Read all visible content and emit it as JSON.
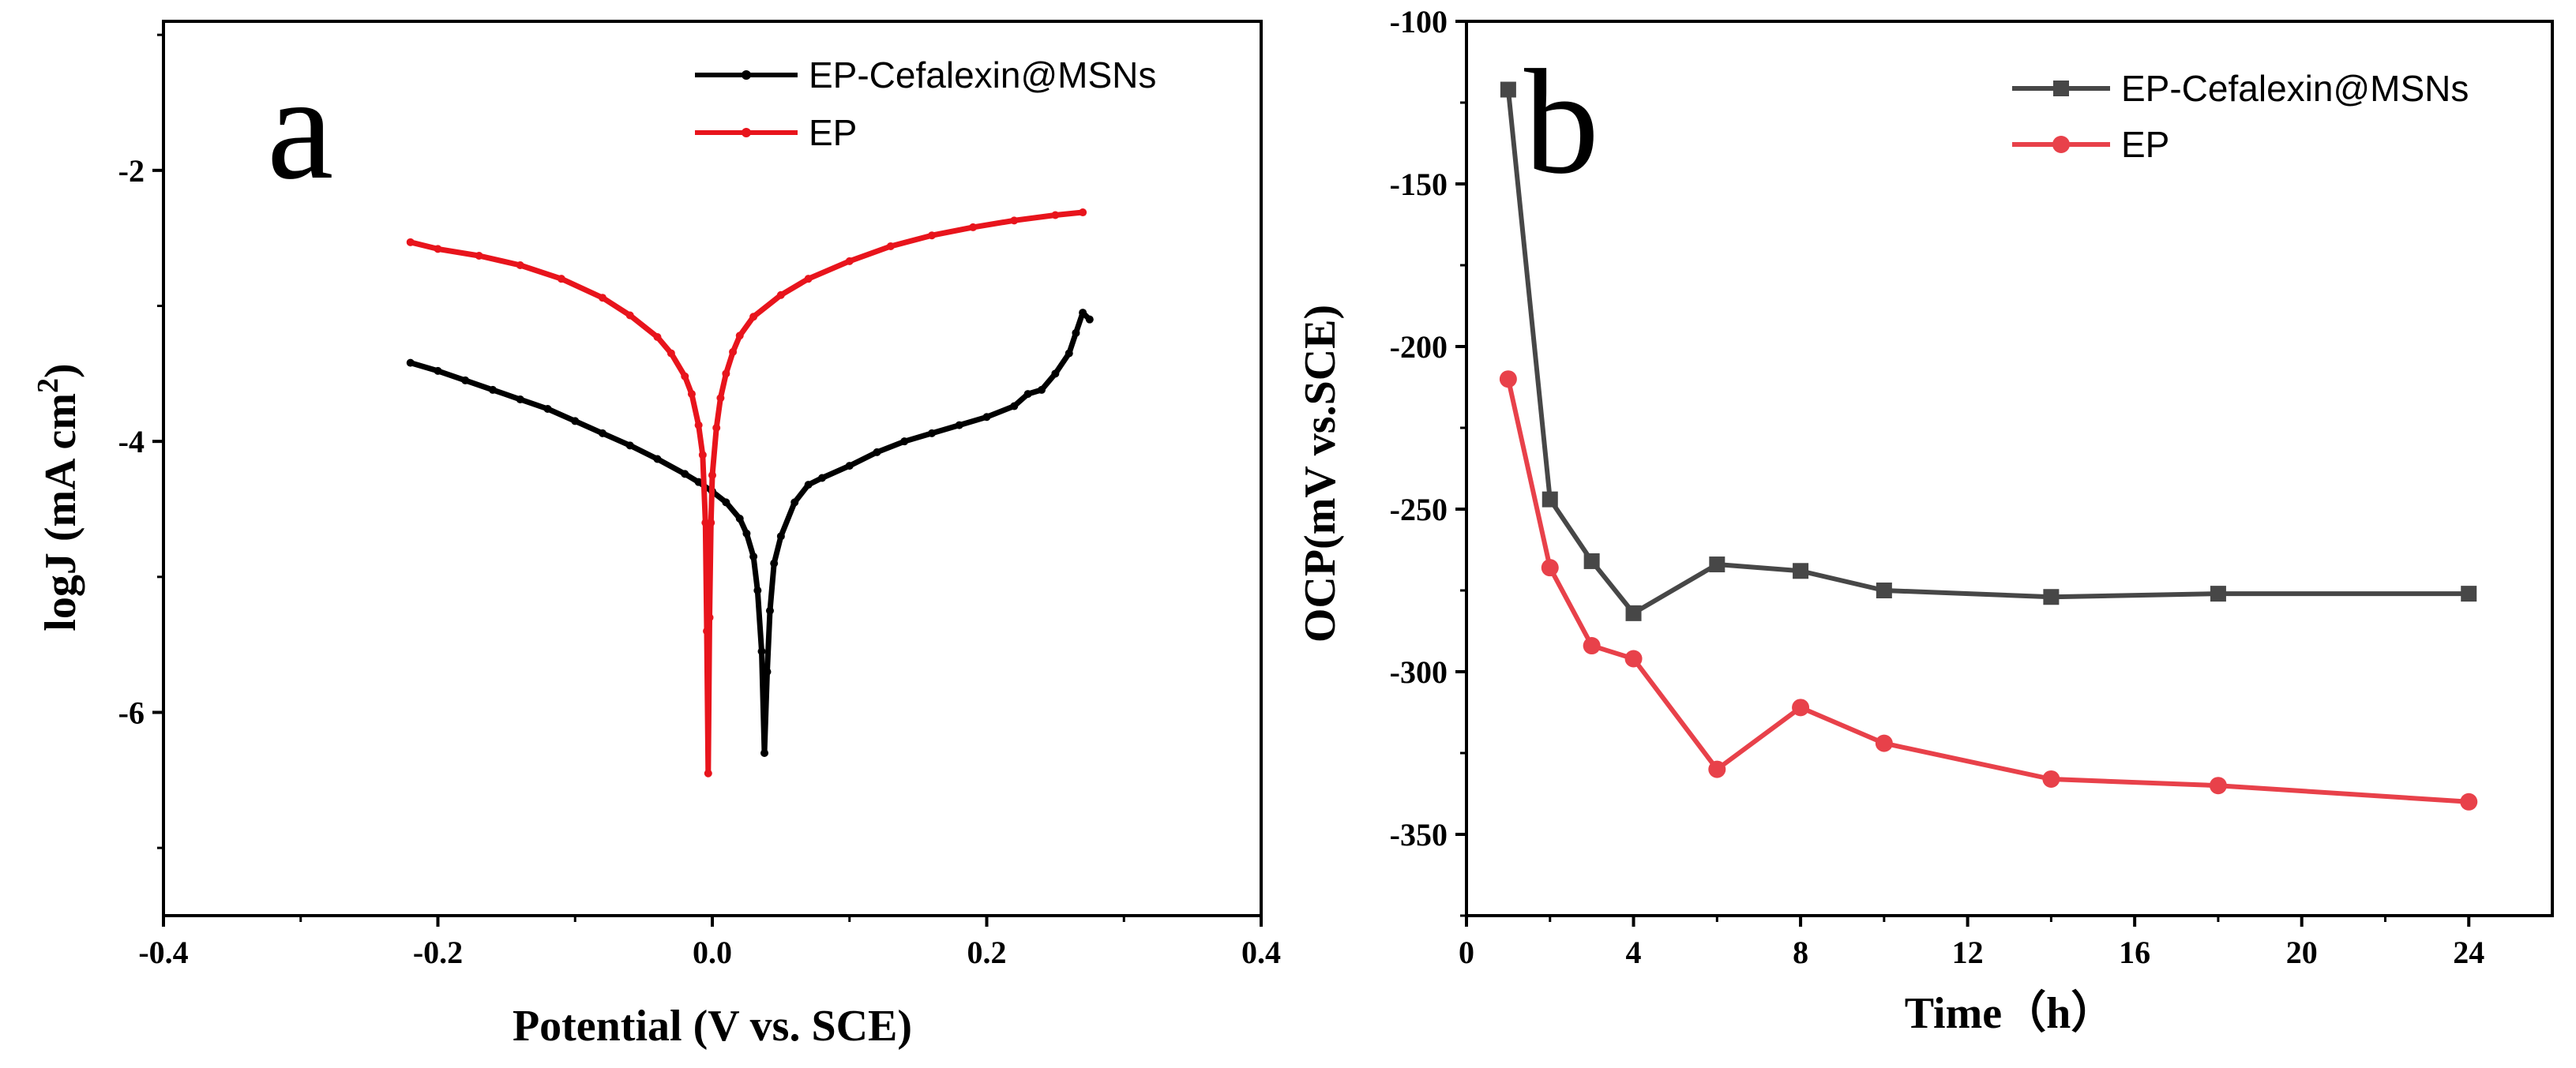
{
  "figure_title": "",
  "chart_data": [
    {
      "panel": "a",
      "type": "line",
      "title": "",
      "xlabel": "Potential (V vs. SCE)",
      "ylabel_main": "logJ (mA cm",
      "ylabel_sup": "2",
      "ylabel_close": ")",
      "xlim": [
        -0.4,
        0.4
      ],
      "ylim": [
        -7.5,
        -0.9
      ],
      "xticks": [
        -0.4,
        -0.2,
        0.0,
        0.2,
        0.4
      ],
      "xtick_labels": [
        "-0.4",
        "-0.2",
        "0.0",
        "0.2",
        "0.4"
      ],
      "yticks": [
        -6,
        -4,
        -2
      ],
      "ytick_labels": [
        "-6",
        "-4",
        "-2"
      ],
      "grid": false,
      "legend_position": "top-right",
      "series": [
        {
          "name": "EP-Cefalexin@MSNs",
          "color": "#000000",
          "x": [
            -0.22,
            -0.2,
            -0.18,
            -0.16,
            -0.14,
            -0.12,
            -0.1,
            -0.08,
            -0.06,
            -0.04,
            -0.02,
            -0.01,
            0.0,
            0.01,
            0.02,
            0.025,
            0.03,
            0.033,
            0.036,
            0.038,
            0.04,
            0.042,
            0.045,
            0.05,
            0.06,
            0.07,
            0.08,
            0.1,
            0.12,
            0.14,
            0.16,
            0.18,
            0.2,
            0.22,
            0.23,
            0.24,
            0.25,
            0.26,
            0.265,
            0.27,
            0.275
          ],
          "y": [
            -3.42,
            -3.48,
            -3.55,
            -3.62,
            -3.69,
            -3.76,
            -3.85,
            -3.94,
            -4.03,
            -4.13,
            -4.24,
            -4.3,
            -4.37,
            -4.45,
            -4.57,
            -4.68,
            -4.85,
            -5.1,
            -5.55,
            -6.3,
            -5.7,
            -5.25,
            -4.9,
            -4.7,
            -4.45,
            -4.32,
            -4.27,
            -4.18,
            -4.08,
            -4.0,
            -3.94,
            -3.88,
            -3.82,
            -3.74,
            -3.65,
            -3.62,
            -3.5,
            -3.35,
            -3.2,
            -3.05,
            -3.1
          ]
        },
        {
          "name": "EP",
          "color": "#e8141c",
          "x": [
            -0.22,
            -0.2,
            -0.17,
            -0.14,
            -0.11,
            -0.08,
            -0.06,
            -0.04,
            -0.03,
            -0.02,
            -0.015,
            -0.01,
            -0.007,
            -0.005,
            -0.004,
            -0.003,
            -0.002,
            -0.001,
            0.0,
            0.003,
            0.006,
            0.01,
            0.015,
            0.02,
            0.03,
            0.05,
            0.07,
            0.1,
            0.13,
            0.16,
            0.19,
            0.22,
            0.25,
            0.27
          ],
          "y": [
            -2.53,
            -2.58,
            -2.63,
            -2.7,
            -2.8,
            -2.94,
            -3.07,
            -3.23,
            -3.35,
            -3.52,
            -3.65,
            -3.88,
            -4.1,
            -4.6,
            -5.4,
            -6.45,
            -5.3,
            -4.6,
            -4.25,
            -3.9,
            -3.68,
            -3.5,
            -3.34,
            -3.22,
            -3.08,
            -2.92,
            -2.8,
            -2.67,
            -2.56,
            -2.48,
            -2.42,
            -2.37,
            -2.33,
            -2.31
          ]
        }
      ]
    },
    {
      "panel": "b",
      "type": "line",
      "title": "",
      "xlabel": "Time（h）",
      "ylabel": "OCP(mV vs.SCE)",
      "xlim": [
        0,
        26
      ],
      "ylim": [
        -375,
        -100
      ],
      "xticks": [
        0,
        4,
        8,
        12,
        16,
        20,
        24
      ],
      "xtick_labels": [
        "0",
        "4",
        "8",
        "12",
        "16",
        "20",
        "24"
      ],
      "yticks": [
        -350,
        -300,
        -250,
        -200,
        -150,
        -100
      ],
      "ytick_labels": [
        "-350",
        "-300",
        "-250",
        "-200",
        "-150",
        "-100"
      ],
      "grid": false,
      "legend_position": "top-right",
      "series": [
        {
          "name": "EP-Cefalexin@MSNs",
          "color": "#474747",
          "marker": "square",
          "x": [
            1,
            2,
            3,
            4,
            6,
            8,
            10,
            14,
            18,
            24
          ],
          "y": [
            -121,
            -247,
            -266,
            -282,
            -267,
            -269,
            -275,
            -277,
            -276,
            -276
          ]
        },
        {
          "name": "EP",
          "color": "#e8414a",
          "marker": "circle",
          "x": [
            1,
            2,
            3,
            4,
            6,
            8,
            10,
            14,
            18,
            24
          ],
          "y": [
            -210,
            -268,
            -292,
            -296,
            -330,
            -311,
            -322,
            -333,
            -335,
            -340
          ]
        }
      ]
    }
  ]
}
